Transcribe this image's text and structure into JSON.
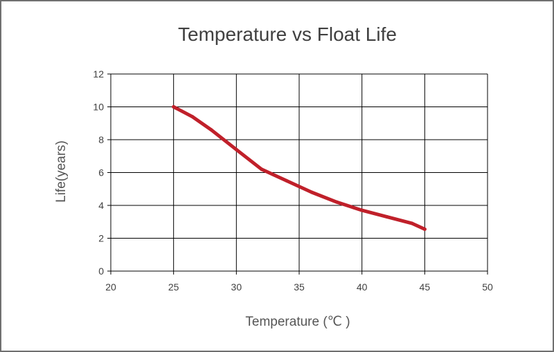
{
  "chart_data": {
    "type": "line",
    "title": "Temperature vs Float Life",
    "xlabel": "Temperature (℃ )",
    "ylabel": "Life(years)",
    "xlim": [
      20,
      50
    ],
    "ylim": [
      0,
      12
    ],
    "x_ticks": [
      "20",
      "25",
      "30",
      "35",
      "40",
      "45",
      "50"
    ],
    "y_ticks": [
      "0",
      "2",
      "4",
      "6",
      "8",
      "10",
      "12"
    ],
    "grid": true,
    "colors": {
      "line": "#c0202a",
      "grid": "#000000",
      "text": "#404040"
    },
    "series": [
      {
        "name": "Float Life",
        "x": [
          25,
          26.5,
          28,
          30,
          32,
          34,
          36,
          38,
          40,
          42,
          44,
          45
        ],
        "y": [
          10,
          9.4,
          8.6,
          7.4,
          6.2,
          5.5,
          4.8,
          4.2,
          3.7,
          3.3,
          2.9,
          2.55
        ]
      }
    ]
  }
}
